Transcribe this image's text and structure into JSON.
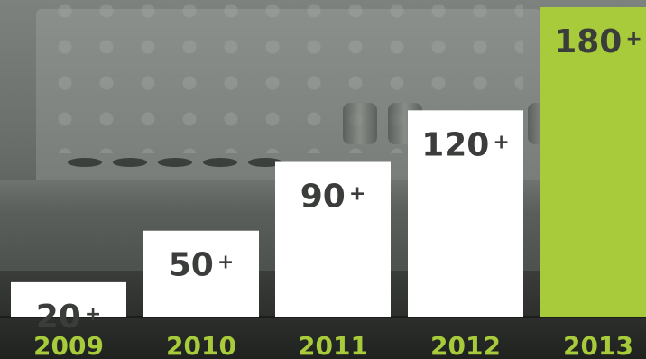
{
  "chart_data": {
    "type": "bar",
    "categories": [
      "2009",
      "2010",
      "2011",
      "2012",
      "2013"
    ],
    "values": [
      20,
      50,
      90,
      120,
      180
    ],
    "value_labels": [
      "20",
      "50",
      "90",
      "120",
      "180"
    ],
    "value_suffix": "+",
    "highlight_index": 4,
    "ylim": [
      0,
      180
    ],
    "grid": false,
    "colors": {
      "bar": "#ffffff",
      "highlight": "#a7cb3a",
      "label": "#3a3d3a",
      "tick": "#a7cb3a"
    }
  }
}
